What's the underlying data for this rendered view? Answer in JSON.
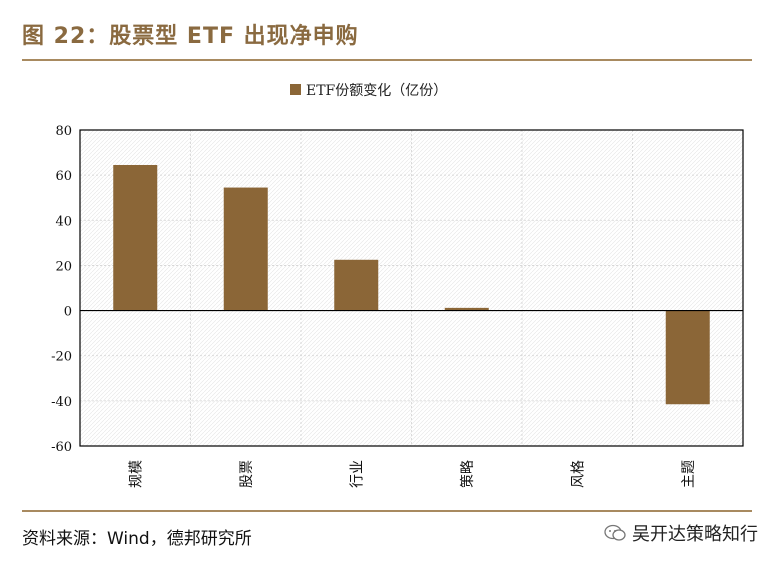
{
  "header": {
    "title": "图 22：股票型 ETF 出现净申购"
  },
  "footer": {
    "source": "资料来源：Wind，德邦研究所",
    "brand": "吴开达策略知行"
  },
  "colors": {
    "accent": "#a88a60",
    "bar": "#8b6637",
    "title": "#8a6a40"
  },
  "chart_data": {
    "type": "bar",
    "categories": [
      "规模",
      "股票",
      "行业",
      "策略",
      "风格",
      "主题"
    ],
    "series": [
      {
        "name": "ETF份额变化（亿份）",
        "values": [
          64.5,
          54.5,
          22.5,
          1.2,
          0,
          -41.5
        ]
      }
    ],
    "ylim": [
      -60,
      80
    ],
    "yticks": [
      80,
      60,
      40,
      20,
      0,
      -20,
      -40,
      -60
    ],
    "grid": true,
    "legend": "top-center",
    "title": "",
    "xlabel": "",
    "ylabel": ""
  }
}
